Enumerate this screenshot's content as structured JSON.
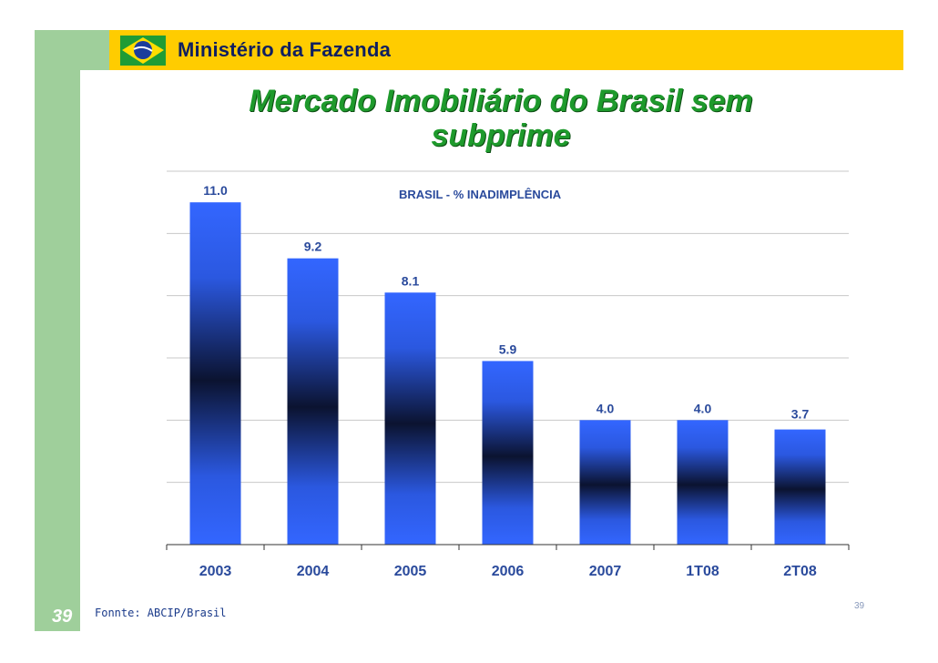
{
  "header": {
    "ministry": "Ministério da Fazenda"
  },
  "title": "Mercado Imobiliário do Brasil sem subprime",
  "chart_data": {
    "type": "bar",
    "title": "BRASIL - % INADIMPLÊNCIA",
    "categories": [
      "2003",
      "2004",
      "2005",
      "2006",
      "2007",
      "1T08",
      "2T08"
    ],
    "values": [
      11.0,
      9.2,
      8.1,
      5.9,
      4.0,
      4.0,
      3.7
    ],
    "value_labels": [
      "11.0",
      "9.2",
      "8.1",
      "5.9",
      "4.0",
      "4.0",
      "3.7"
    ],
    "ylim": [
      0,
      12
    ],
    "grid": true,
    "xlabel": "",
    "ylabel": ""
  },
  "footer": {
    "source": "Fonnte: ABCIP/Brasil",
    "page_number": "39",
    "slide_number": "39"
  },
  "colors": {
    "bar_light": "#3366ff",
    "bar_dark": "#0b1330",
    "title_green": "#1e9a2c",
    "header_yellow": "#ffcc00",
    "side_green": "#9fcf9b"
  }
}
